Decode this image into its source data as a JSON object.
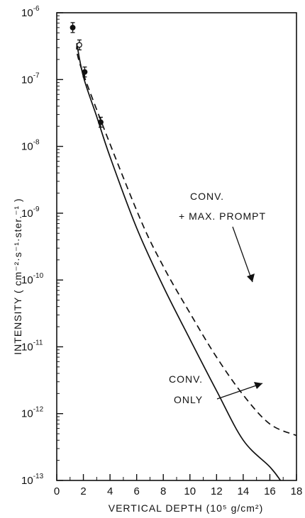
{
  "chart_data": {
    "type": "line",
    "xlabel": "VERTICAL DEPTH (10⁵ g/cm²)",
    "ylabel": "INTENSITY  ( cm⁻²·s⁻¹·ster.⁻¹ )",
    "xlim": [
      0,
      18
    ],
    "ylim_log10": [
      -13,
      -6
    ],
    "y_scale": "log",
    "x_ticks": [
      "0",
      "2",
      "4",
      "6",
      "8",
      "10",
      "12",
      "14",
      "16",
      "18"
    ],
    "y_ticks": [
      {
        "base": "10",
        "exp": "-6"
      },
      {
        "base": "10",
        "exp": "-7"
      },
      {
        "base": "10",
        "exp": "-8"
      },
      {
        "base": "10",
        "exp": "-9"
      },
      {
        "base": "10",
        "exp": "-10"
      },
      {
        "base": "10",
        "exp": "-11"
      },
      {
        "base": "10",
        "exp": "-12"
      },
      {
        "base": "10",
        "exp": "-13"
      }
    ],
    "grid": false,
    "series": [
      {
        "name": "CONV. ONLY",
        "style": "solid",
        "x": [
          1.5,
          2,
          3,
          4,
          6,
          8,
          10,
          12,
          14,
          16,
          16.8
        ],
        "y": [
          3.5e-07,
          1.1e-07,
          2.8e-08,
          7e-09,
          6e-10,
          8e-11,
          1.3e-11,
          2.2e-12,
          4e-13,
          1.6e-13,
          1e-13
        ]
      },
      {
        "name": "CONV. + MAX. PROMPT",
        "style": "dashed",
        "x": [
          1.5,
          2,
          6,
          8,
          10,
          12,
          14,
          16,
          18
        ],
        "y": [
          3.5e-07,
          1.2e-07,
          1.1e-09,
          1.6e-10,
          3.2e-11,
          7e-12,
          1.9e-12,
          7e-13,
          4.7e-13
        ]
      }
    ],
    "points": [
      {
        "x": 1.2,
        "y": 6e-07,
        "marker": "filled"
      },
      {
        "x": 1.7,
        "y": 3.3e-07,
        "marker": "open"
      },
      {
        "x": 2.1,
        "y": 1.3e-07,
        "marker": "filled"
      },
      {
        "x": 3.3,
        "y": 2.3e-08,
        "marker": "filled"
      }
    ],
    "annotations": [
      {
        "id": "conv-only",
        "lines": [
          "CONV.",
          "ONLY"
        ]
      },
      {
        "id": "conv-max-prompt",
        "lines": [
          "CONV.",
          "+ MAX. PROMPT"
        ]
      }
    ]
  }
}
